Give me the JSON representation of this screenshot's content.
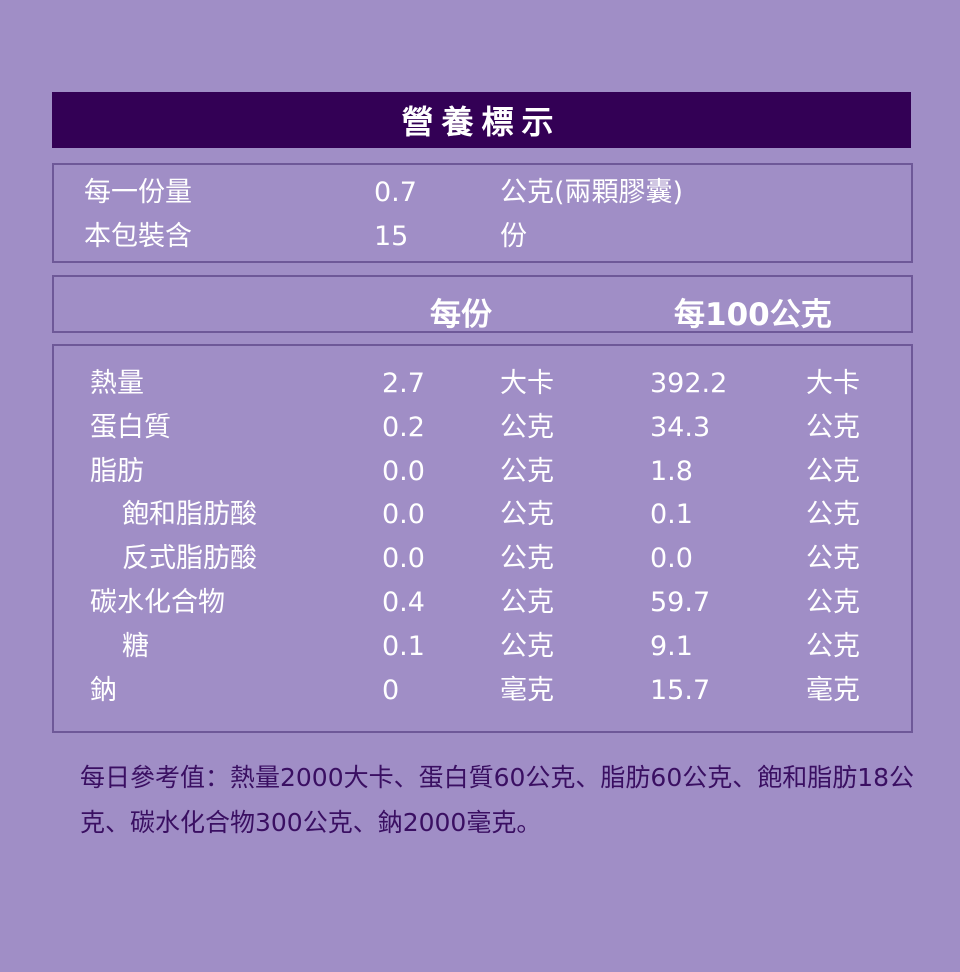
{
  "title": "營養標示",
  "serving": [
    {
      "label": "每一份量",
      "value": "0.7",
      "unit": "公克(兩顆膠囊)"
    },
    {
      "label": "本包裝含",
      "value": "15",
      "unit": "份"
    }
  ],
  "columns": {
    "per_serving": "每份",
    "per_100g": "每100公克"
  },
  "nutrients": [
    {
      "name": "熱量",
      "indent": false,
      "per_serving": "2.7",
      "unit1": "大卡",
      "per_100g": "392.2",
      "unit2": "大卡"
    },
    {
      "name": "蛋白質",
      "indent": false,
      "per_serving": "0.2",
      "unit1": "公克",
      "per_100g": "34.3",
      "unit2": "公克"
    },
    {
      "name": "脂肪",
      "indent": false,
      "per_serving": "0.0",
      "unit1": "公克",
      "per_100g": "1.8",
      "unit2": "公克"
    },
    {
      "name": "飽和脂肪酸",
      "indent": true,
      "per_serving": "0.0",
      "unit1": "公克",
      "per_100g": "0.1",
      "unit2": "公克"
    },
    {
      "name": "反式脂肪酸",
      "indent": true,
      "per_serving": "0.0",
      "unit1": "公克",
      "per_100g": "0.0",
      "unit2": "公克"
    },
    {
      "name": "碳水化合物",
      "indent": false,
      "per_serving": "0.4",
      "unit1": "公克",
      "per_100g": "59.7",
      "unit2": "公克"
    },
    {
      "name": "糖",
      "indent": true,
      "per_serving": "0.1",
      "unit1": "公克",
      "per_100g": "9.1",
      "unit2": "公克"
    },
    {
      "name": "鈉",
      "indent": false,
      "per_serving": "0",
      "unit1": "毫克",
      "per_100g": "15.7",
      "unit2": "毫克"
    }
  ],
  "footnote": "每日參考值：熱量2000大卡、蛋白質60公克、脂肪60公克、飽和脂肪18公克、碳水化合物300公克、鈉2000毫克。",
  "colors": {
    "background": "#a08ec6",
    "header": "#330055",
    "footnote_text": "#3a0f62"
  }
}
